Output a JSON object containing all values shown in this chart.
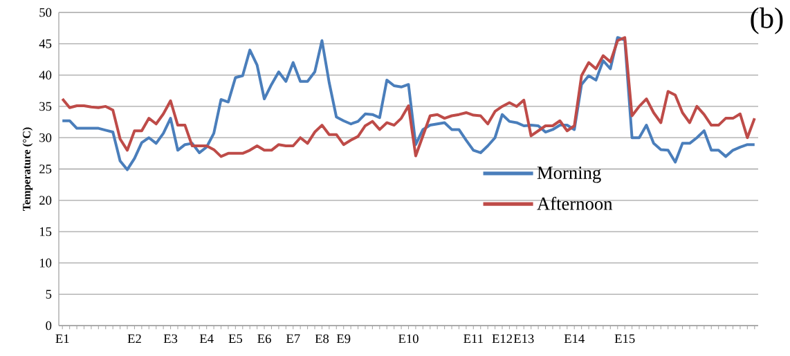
{
  "chart_data": {
    "type": "line",
    "ylabel": "Temperature  (°C)",
    "annotations": [
      "(b)"
    ],
    "categories": [
      "E1",
      null,
      null,
      null,
      null,
      null,
      null,
      null,
      null,
      null,
      "E2",
      null,
      null,
      null,
      null,
      "E3",
      null,
      null,
      null,
      null,
      "E4",
      null,
      null,
      null,
      "E5",
      null,
      null,
      null,
      "E6",
      null,
      null,
      null,
      "E7",
      null,
      null,
      null,
      "E8",
      null,
      null,
      "E9",
      null,
      null,
      null,
      null,
      null,
      null,
      null,
      null,
      "E10",
      null,
      null,
      null,
      null,
      null,
      null,
      null,
      null,
      "E11",
      null,
      null,
      null,
      "E12",
      null,
      null,
      "E13",
      null,
      null,
      null,
      null,
      null,
      null,
      "E14",
      null,
      null,
      null,
      null,
      null,
      null,
      "E15",
      null,
      null,
      null,
      null,
      null,
      null,
      null,
      null,
      null,
      null,
      null,
      null,
      null,
      null,
      null,
      null,
      null,
      null
    ],
    "series": [
      {
        "name": "Morning",
        "color": "#4a7ebb",
        "values": [
          32.7,
          32.7,
          31.5,
          31.5,
          31.5,
          31.5,
          31.2,
          30.9,
          26.3,
          24.9,
          26.7,
          29.2,
          30.0,
          29.1,
          30.7,
          33.1,
          28.0,
          28.9,
          29.1,
          27.6,
          28.5,
          30.7,
          36.1,
          35.7,
          39.6,
          39.9,
          44.0,
          41.6,
          36.2,
          38.5,
          40.5,
          39.0,
          42.0,
          39.0,
          39.0,
          40.5,
          45.5,
          38.8,
          33.3,
          32.7,
          32.2,
          32.6,
          33.8,
          33.7,
          33.2,
          39.2,
          38.3,
          38.1,
          38.5,
          28.9,
          31.3,
          32.0,
          32.2,
          32.4,
          31.3,
          31.3,
          29.6,
          28.0,
          27.6,
          28.7,
          30.0,
          33.7,
          32.6,
          32.4,
          31.9,
          32.0,
          31.9,
          30.9,
          31.3,
          32.0,
          32.0,
          31.3,
          38.5,
          39.9,
          39.2,
          42.3,
          41.0,
          46.0,
          45.6,
          30.0,
          30.0,
          32.0,
          29.1,
          28.1,
          28.0,
          26.1,
          29.1,
          29.1,
          30.0,
          31.1,
          28.0,
          28.0,
          27.0,
          28.0,
          28.5,
          28.9,
          28.9
        ]
      },
      {
        "name": "Afternoon",
        "color": "#be4b48",
        "values": [
          36.2,
          34.8,
          35.1,
          35.1,
          34.9,
          34.8,
          35.0,
          34.4,
          29.8,
          28.0,
          31.1,
          31.1,
          33.1,
          32.2,
          33.8,
          35.9,
          32.0,
          32.0,
          28.7,
          28.7,
          28.7,
          28.1,
          27.0,
          27.5,
          27.5,
          27.5,
          28.0,
          28.7,
          28.0,
          28.0,
          28.9,
          28.7,
          28.7,
          30.0,
          29.1,
          30.9,
          32.0,
          30.5,
          30.5,
          28.9,
          29.6,
          30.2,
          31.9,
          32.6,
          31.3,
          32.4,
          32.0,
          33.1,
          35.1,
          27.1,
          30.3,
          33.5,
          33.7,
          33.1,
          33.5,
          33.7,
          34.0,
          33.6,
          33.5,
          32.2,
          34.2,
          35.0,
          35.6,
          35.0,
          36.0,
          30.3,
          31.1,
          31.9,
          31.9,
          32.7,
          31.1,
          31.9,
          39.9,
          42.0,
          41.0,
          43.1,
          42.1,
          45.5,
          46.0,
          33.5,
          35.0,
          36.2,
          34.0,
          32.4,
          37.4,
          36.8,
          34.0,
          32.4,
          35.0,
          33.7,
          32.0,
          32.0,
          33.1,
          33.1,
          33.8,
          30.0,
          33.1
        ]
      }
    ],
    "ylim": [
      0,
      50
    ],
    "yticks": [
      0,
      5,
      10,
      15,
      20,
      25,
      30,
      35,
      40,
      45,
      50
    ],
    "grid": "y",
    "legend": "right",
    "marker": "none",
    "line_style": "solid"
  }
}
